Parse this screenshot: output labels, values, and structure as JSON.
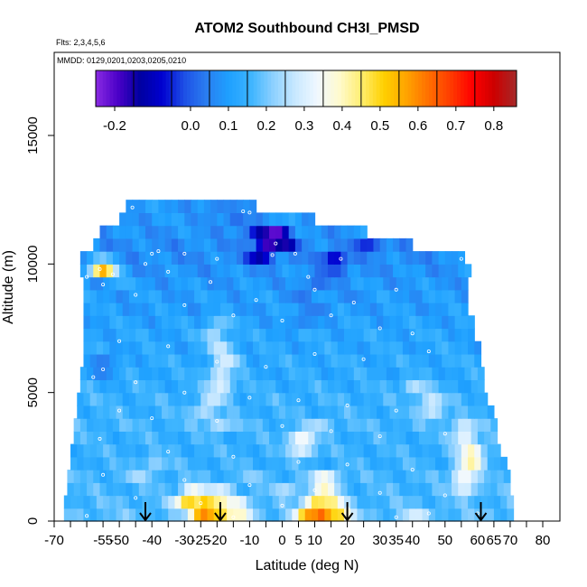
{
  "chart_data": {
    "type": "heatmap",
    "title": "ATOM2 Southbound CH3I_PMSD",
    "flights_label": "Flts: 2,3,4,5,6",
    "mmdd_label": "MMDD: 0129,0201,0203,0205,0210",
    "xlabel": "Latitude (deg N)",
    "ylabel": "Altitude (m)",
    "xlim": [
      -70,
      85
    ],
    "ylim": [
      0,
      18000
    ],
    "x_ticks": [
      -70,
      -55,
      -40,
      -25,
      -10,
      5,
      20,
      35,
      50,
      65,
      80
    ],
    "x_tick_labels": [
      "-70",
      "-55",
      "-40",
      "-25",
      "-10",
      "5",
      "20",
      "35",
      "50",
      "65",
      "80"
    ],
    "x_minor_ticks": [
      -65,
      -60,
      -50,
      -45,
      -35,
      -30,
      -20,
      -15,
      -5,
      0,
      10,
      15,
      25,
      30,
      40,
      45,
      55,
      60,
      70,
      75
    ],
    "x_minor_tick_labels": [
      "",
      "",
      "-50",
      "",
      "",
      "-30",
      "-20",
      "",
      "",
      "0",
      "10",
      "",
      "",
      "30",
      "40",
      "",
      "",
      "60",
      "70",
      ""
    ],
    "y_ticks": [
      0,
      5000,
      10000,
      15000
    ],
    "y_tick_labels": [
      "0",
      "5000",
      "10000",
      "15000"
    ],
    "colorbar": {
      "range": [
        -0.25,
        0.86
      ],
      "colors": [
        "#8a2be2",
        "#4b00c8",
        "#0000a0",
        "#0000d0",
        "#1e50e6",
        "#2a7ef0",
        "#1ea0ff",
        "#3cb4ff",
        "#8cd0ff",
        "#c8e8ff",
        "#f0f8ff",
        "#fffacd",
        "#ffee70",
        "#ffd000",
        "#ffa500",
        "#ff7000",
        "#ff3c00",
        "#ff0000",
        "#cc0000",
        "#a52a2a"
      ],
      "tick_values": [
        -0.2,
        0.0,
        0.1,
        0.2,
        0.3,
        0.4,
        0.5,
        0.6,
        0.7,
        0.8
      ],
      "tick_labels": [
        "-0.2",
        "0.0",
        "0.1",
        "0.2",
        "0.3",
        "0.4",
        "0.5",
        "0.6",
        "0.7",
        "0.8"
      ],
      "divider_values": [
        -0.15,
        -0.05,
        0.05,
        0.15,
        0.25,
        0.35,
        0.45,
        0.55,
        0.65,
        0.75
      ]
    },
    "grid": {
      "lat_start": -68,
      "lat_step": 2,
      "alt_step": 500,
      "rows": [
        {
          "alt": 0,
          "lat": [
            -67,
            71
          ],
          "base": 0.18,
          "blobs": [
            [
              -25,
              0.6
            ],
            [
              -22,
              0.65
            ],
            [
              -20,
              0.5
            ],
            [
              -14,
              0.4
            ],
            [
              7,
              0.55
            ],
            [
              12,
              0.7
            ],
            [
              16,
              0.5
            ],
            [
              40,
              0.3
            ]
          ]
        },
        {
          "alt": 500,
          "lat": [
            -67,
            71
          ],
          "base": 0.17,
          "blobs": [
            [
              -30,
              0.5
            ],
            [
              -24,
              0.55
            ],
            [
              -20,
              0.45
            ],
            [
              -15,
              0.35
            ],
            [
              10,
              0.5
            ],
            [
              14,
              0.45
            ]
          ]
        },
        {
          "alt": 1000,
          "lat": [
            -66,
            70
          ],
          "base": 0.16,
          "blobs": [
            [
              -28,
              0.35
            ],
            [
              -20,
              0.3
            ],
            [
              0,
              0.25
            ],
            [
              12,
              0.4
            ],
            [
              55,
              0.3
            ]
          ]
        },
        {
          "alt": 1500,
          "lat": [
            -66,
            69
          ],
          "base": 0.16,
          "blobs": [
            [
              -45,
              0.25
            ],
            [
              -10,
              0.22
            ],
            [
              12,
              0.35
            ],
            [
              55,
              0.35
            ]
          ]
        },
        {
          "alt": 2000,
          "lat": [
            -65,
            68
          ],
          "base": 0.15,
          "blobs": [
            [
              -40,
              0.22
            ],
            [
              57,
              0.42
            ]
          ]
        },
        {
          "alt": 2500,
          "lat": [
            -65,
            67
          ],
          "base": 0.15,
          "blobs": [
            [
              5,
              0.3
            ],
            [
              57,
              0.4
            ]
          ]
        },
        {
          "alt": 3000,
          "lat": [
            -64,
            66
          ],
          "base": 0.15,
          "blobs": [
            [
              5,
              0.35
            ],
            [
              55,
              0.32
            ]
          ]
        },
        {
          "alt": 3500,
          "lat": [
            -64,
            65
          ],
          "base": 0.16,
          "blobs": [
            [
              -20,
              0.25
            ],
            [
              10,
              0.25
            ],
            [
              55,
              0.28
            ]
          ]
        },
        {
          "alt": 4000,
          "lat": [
            -63,
            64
          ],
          "base": 0.15,
          "blobs": [
            [
              -25,
              0.25
            ],
            [
              45,
              0.27
            ]
          ]
        },
        {
          "alt": 4500,
          "lat": [
            -63,
            63
          ],
          "base": 0.15,
          "blobs": [
            [
              -22,
              0.28
            ],
            [
              45,
              0.28
            ]
          ]
        },
        {
          "alt": 5000,
          "lat": [
            -62,
            62
          ],
          "base": 0.14,
          "blobs": [
            [
              -20,
              0.3
            ],
            [
              40,
              0.26
            ]
          ]
        },
        {
          "alt": 5500,
          "lat": [
            -62,
            61
          ],
          "base": 0.13,
          "blobs": [
            [
              -20,
              0.28
            ],
            [
              -56,
              0.05
            ]
          ]
        },
        {
          "alt": 6000,
          "lat": [
            -61,
            60
          ],
          "base": 0.13,
          "blobs": [
            [
              -18,
              0.3
            ],
            [
              -56,
              0.04
            ]
          ]
        },
        {
          "alt": 6500,
          "lat": [
            -61,
            60
          ],
          "base": 0.12,
          "blobs": [
            [
              -20,
              0.28
            ]
          ]
        },
        {
          "alt": 7000,
          "lat": [
            -61,
            59
          ],
          "base": 0.12,
          "blobs": [
            [
              -22,
              0.24
            ]
          ]
        },
        {
          "alt": 7500,
          "lat": [
            -61,
            58
          ],
          "base": 0.11,
          "blobs": [
            [
              -20,
              0.2
            ],
            [
              5,
              0.06
            ]
          ]
        },
        {
          "alt": 8000,
          "lat": [
            -61,
            57
          ],
          "base": 0.1,
          "blobs": [
            [
              10,
              0.04
            ]
          ]
        },
        {
          "alt": 8500,
          "lat": [
            -61,
            57
          ],
          "base": 0.1,
          "blobs": [
            [
              5,
              0.03
            ],
            [
              20,
              0.05
            ]
          ]
        },
        {
          "alt": 9000,
          "lat": [
            -61,
            57
          ],
          "base": 0.09,
          "blobs": [
            [
              10,
              0.02
            ],
            [
              -50,
              0.15
            ]
          ]
        },
        {
          "alt": 9500,
          "lat": [
            -62,
            58
          ],
          "base": 0.08,
          "blobs": [
            [
              -56,
              0.55
            ],
            [
              15,
              -0.02
            ]
          ]
        },
        {
          "alt": 10000,
          "lat": [
            -62,
            55
          ],
          "base": 0.07,
          "blobs": [
            [
              -8,
              -0.12
            ],
            [
              15,
              -0.08
            ],
            [
              -56,
              0.2
            ]
          ]
        },
        {
          "alt": 10500,
          "lat": [
            -58,
            40
          ],
          "base": 0.07,
          "blobs": [
            [
              -5,
              -0.2
            ],
            [
              0,
              -0.15
            ],
            [
              25,
              -0.05
            ]
          ]
        },
        {
          "alt": 11000,
          "lat": [
            -56,
            25
          ],
          "base": 0.08,
          "blobs": [
            [
              -8,
              -0.1
            ],
            [
              -3,
              -0.22
            ]
          ]
        },
        {
          "alt": 11500,
          "lat": [
            -50,
            10
          ],
          "base": 0.09,
          "blobs": [
            [
              -15,
              0.02
            ]
          ]
        },
        {
          "alt": 12000,
          "lat": [
            -48,
            -8
          ],
          "base": 0.09,
          "blobs": [
            [
              -20,
              0.05
            ]
          ]
        }
      ]
    },
    "sample_points": [
      [
        -46,
        12200
      ],
      [
        -10,
        12000
      ],
      [
        -12,
        12050
      ],
      [
        -30,
        10400
      ],
      [
        -40,
        10400
      ],
      [
        -20,
        10200
      ],
      [
        -42,
        10000
      ],
      [
        -35,
        9700
      ],
      [
        -60,
        9500
      ],
      [
        -55,
        9200
      ],
      [
        -45,
        8800
      ],
      [
        -30,
        8400
      ],
      [
        -15,
        8000
      ],
      [
        0,
        7800
      ],
      [
        15,
        8000
      ],
      [
        30,
        7500
      ],
      [
        40,
        7300
      ],
      [
        -50,
        7000
      ],
      [
        -35,
        6800
      ],
      [
        -20,
        6200
      ],
      [
        -5,
        6000
      ],
      [
        10,
        6500
      ],
      [
        25,
        6300
      ],
      [
        45,
        6600
      ],
      [
        -55,
        5900
      ],
      [
        -58,
        5600
      ],
      [
        -45,
        5400
      ],
      [
        -30,
        5000
      ],
      [
        -10,
        4800
      ],
      [
        5,
        4700
      ],
      [
        20,
        4500
      ],
      [
        35,
        4300
      ],
      [
        -50,
        4300
      ],
      [
        -40,
        4000
      ],
      [
        -20,
        3900
      ],
      [
        0,
        3700
      ],
      [
        15,
        3500
      ],
      [
        30,
        3300
      ],
      [
        50,
        3400
      ],
      [
        -56,
        3200
      ],
      [
        -35,
        2700
      ],
      [
        -15,
        2500
      ],
      [
        5,
        2300
      ],
      [
        20,
        2200
      ],
      [
        40,
        2000
      ],
      [
        -55,
        1800
      ],
      [
        -30,
        1600
      ],
      [
        -10,
        1400
      ],
      [
        10,
        1200
      ],
      [
        30,
        1100
      ],
      [
        50,
        1000
      ],
      [
        -45,
        900
      ],
      [
        -25,
        700
      ],
      [
        0,
        600
      ],
      [
        20,
        500
      ],
      [
        45,
        300
      ],
      [
        -60,
        200
      ],
      [
        -15,
        150
      ],
      [
        35,
        150
      ],
      [
        60,
        300
      ],
      [
        -56,
        9800
      ],
      [
        -52,
        9600
      ],
      [
        -38,
        10500
      ],
      [
        -2,
        10800
      ],
      [
        -3,
        10350
      ],
      [
        4,
        10400
      ],
      [
        10,
        9000
      ],
      [
        22,
        8500
      ],
      [
        18,
        10200
      ],
      [
        8,
        9500
      ],
      [
        -22,
        9300
      ],
      [
        -8,
        8600
      ],
      [
        35,
        9000
      ],
      [
        55,
        10200
      ],
      [
        59,
        9600
      ]
    ],
    "arrows_lat": [
      -42,
      -19,
      20,
      61
    ]
  }
}
